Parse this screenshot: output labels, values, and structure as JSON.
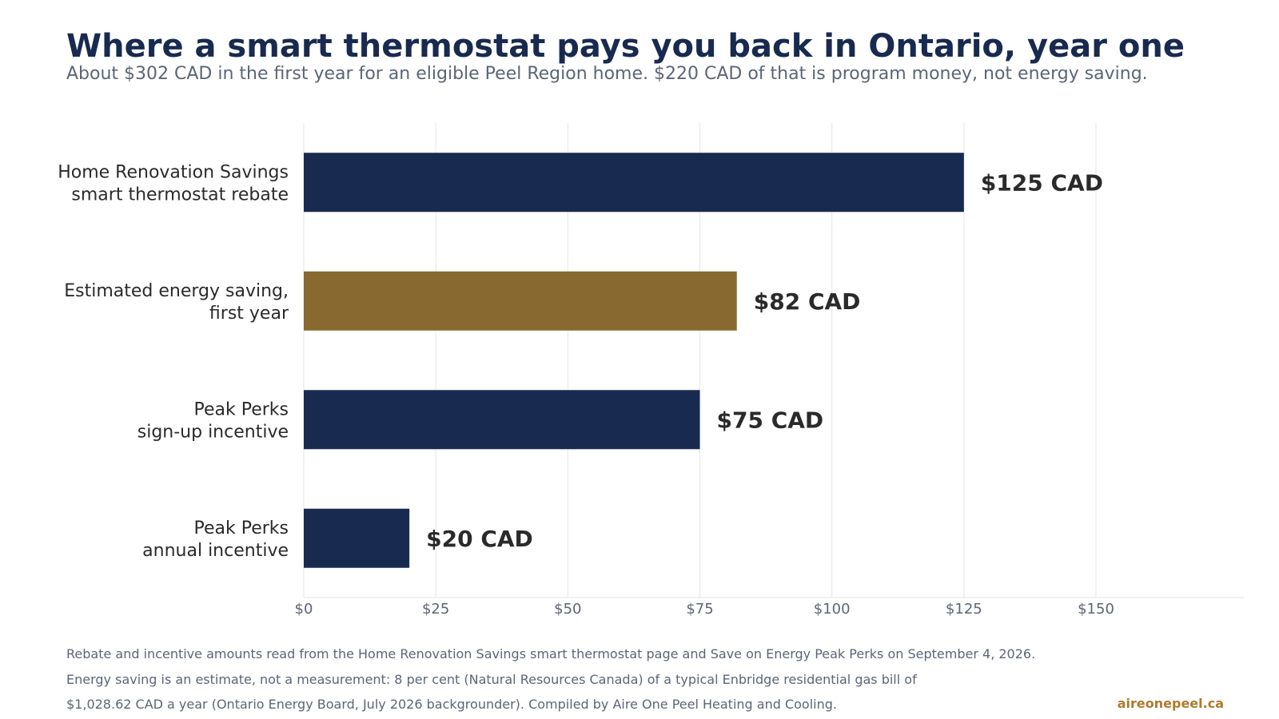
{
  "header": {
    "title": "Where a smart thermostat pays you back in Ontario, year one",
    "subtitle": "About $302 CAD in the first year for an eligible Peel Region home. $220 CAD of that is program money, not energy saving."
  },
  "chart_data": {
    "type": "bar",
    "orientation": "horizontal",
    "categories": [
      [
        "Home Renovation Savings",
        "smart thermostat rebate"
      ],
      [
        "Estimated energy saving,",
        "first year"
      ],
      [
        "Peak Perks",
        "sign-up incentive"
      ],
      [
        "Peak Perks",
        "annual incentive"
      ]
    ],
    "values": [
      125,
      82,
      75,
      20
    ],
    "value_labels": [
      "$125 CAD",
      "$82 CAD",
      "$75 CAD",
      "$20 CAD"
    ],
    "bar_colors": [
      "#182a4f",
      "#886a31",
      "#182a4f",
      "#182a4f"
    ],
    "x_ticks": [
      0,
      25,
      50,
      75,
      100,
      125,
      150
    ],
    "x_tick_labels": [
      "$0",
      "$25",
      "$50",
      "$75",
      "$100",
      "$125",
      "$150"
    ],
    "xlim": [
      0,
      178
    ],
    "grid": "vertical",
    "xlabel": "",
    "ylabel": ""
  },
  "footer": {
    "source_line_1": "Rebate and incentive amounts read from the Home Renovation Savings smart thermostat page and Save on Energy Peak Perks on September 4, 2026.",
    "source_line_2": "Energy saving is an estimate, not a measurement: 8 per cent (Natural Resources Canada) of a typical Enbridge residential gas bill of",
    "source_line_3": "$1,028.62 CAD a year (Ontario Energy Board, July 2026 backgrounder). Compiled by Aire One Peel Heating and Cooling.",
    "brand": "aireonepeel.ca"
  },
  "colors": {
    "navy": "#182a4f",
    "gold": "#886a31",
    "brand_accent": "#b07a2a",
    "muted_text": "#5c6575",
    "grid": "#e6e6e6"
  }
}
